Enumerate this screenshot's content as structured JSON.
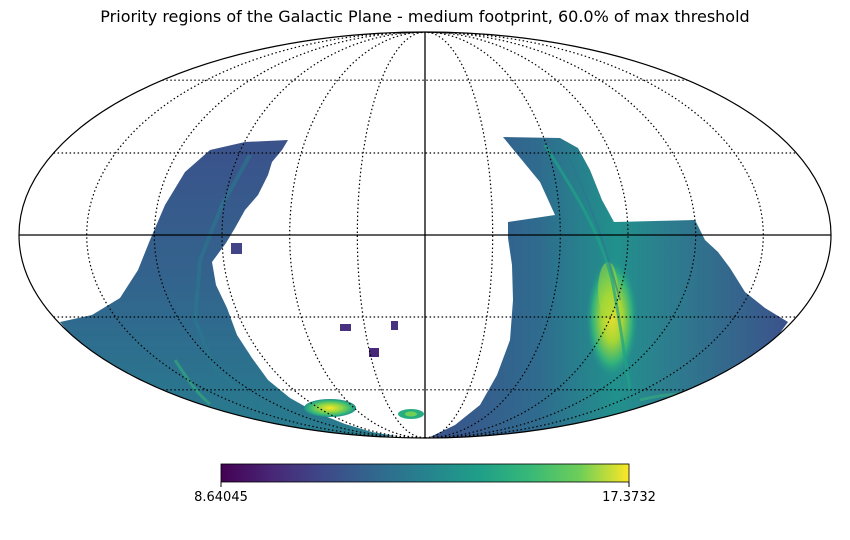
{
  "chart_data": {
    "type": "heatmap",
    "projection": "mollweide",
    "title": "Priority regions of the Galactic Plane - medium footprint, 60.0% of max threshold",
    "colormap": "viridis",
    "colorbar": {
      "min": 8.64045,
      "max": 17.3732,
      "tick_labels": [
        "8.64045",
        "17.3732"
      ],
      "placement": "bottom"
    },
    "grid": true,
    "regions": [
      {
        "name": "western-plane-arc",
        "value_range": [
          9.5,
          13.0
        ]
      },
      {
        "name": "eastern-plane-arc",
        "value_range": [
          9.5,
          17.3732
        ]
      },
      {
        "name": "southern-cloud-large",
        "value_range": [
          12.0,
          17.0
        ]
      },
      {
        "name": "southern-cloud-small",
        "value_range": [
          11.0,
          13.5
        ]
      },
      {
        "name": "isolated-patch-1",
        "value_range": [
          8.8,
          9.5
        ]
      },
      {
        "name": "isolated-patch-2",
        "value_range": [
          8.8,
          9.5
        ]
      },
      {
        "name": "isolated-patch-3",
        "value_range": [
          8.8,
          9.5
        ]
      },
      {
        "name": "isolated-patch-4",
        "value_range": [
          8.8,
          9.5
        ]
      }
    ]
  }
}
